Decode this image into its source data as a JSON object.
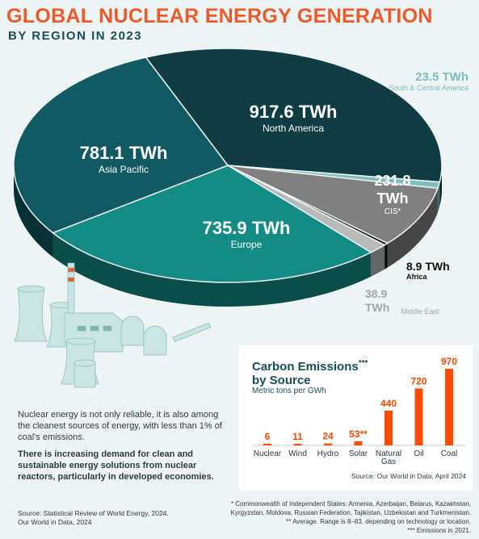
{
  "header": {
    "title": "GLOBAL NUCLEAR ENERGY GENERATION",
    "subtitle": "BY REGION IN 2023"
  },
  "colors": {
    "title": "#ee5a2a",
    "subtitle": "#174e56",
    "background": "#eef3f3",
    "bars": "#ff4c00"
  },
  "chart_data": [
    {
      "type": "pie",
      "title": "GLOBAL NUCLEAR ENERGY GENERATION",
      "subtitle": "BY REGION IN 2023",
      "unit": "TWh",
      "slices": [
        {
          "label": "North America",
          "value": 917.6,
          "value_text": "917.6 TWh",
          "color": "#0f3d43"
        },
        {
          "label": "South & Central America",
          "value": 23.5,
          "value_text": "23.5 TWh",
          "color": "#7fbdbd"
        },
        {
          "label": "CIS*",
          "value": 231.8,
          "value_text": "231.8 TWh",
          "color": "#818080"
        },
        {
          "label": "Africa",
          "value": 8.9,
          "value_text": "8.9 TWh",
          "color": "#0c0c0c"
        },
        {
          "label": "Middle East",
          "value": 38.9,
          "value_text": "38.9 TWh",
          "color": "#b8b9b9"
        },
        {
          "label": "Europe",
          "value": 735.9,
          "value_text": "735.9 TWh",
          "color": "#138c86"
        },
        {
          "label": "Asia Pacific",
          "value": 781.1,
          "value_text": "781.1 TWh",
          "color": "#115a63"
        }
      ]
    },
    {
      "type": "bar",
      "title": "Carbon Emissions*** by Source",
      "ylabel": "Metric tons per GWh",
      "categories": [
        "Nuclear",
        "Wind",
        "Hydro",
        "Solar",
        "Natural Gas",
        "Oil",
        "Coal"
      ],
      "values": [
        6,
        11,
        24,
        53,
        440,
        720,
        970
      ],
      "value_labels": [
        "6",
        "11",
        "24",
        "53**",
        "440",
        "720",
        "970"
      ],
      "ylim": [
        0,
        970
      ]
    }
  ],
  "texts": {
    "para1": "Nuclear energy is not only reliable, it is also among the cleanest sources of energy, with less than 1% of coal's emissions.",
    "para2": "There is increasing demand for clean and sustainable energy solutions from nuclear reactors, particularly in developed economies.",
    "source_left": "Source: Statistical Review of World Energy, 2024. Our World in Data, 2024",
    "panel_title_1": "Carbon Emissions",
    "panel_title_mark": "***",
    "panel_title_2": "by Source",
    "panel_subtitle": "Metric tons per GWh",
    "panel_source": "Source: Our World in Data, April 2024",
    "foot1": "* Commonwealth of Independent States: Armenia, Azerbaijan, Belarus, Kazakhstan, Kyrgyzstan, Moldova, Russian Federation, Tajikistan, Uzbekistan and Turkmenistan.",
    "foot2": "** Average. Range is 8–83, depending on technology or location.",
    "foot3": "*** Emissions in 2021."
  },
  "icons": [
    "nuclear-plant-illustration-icon"
  ]
}
